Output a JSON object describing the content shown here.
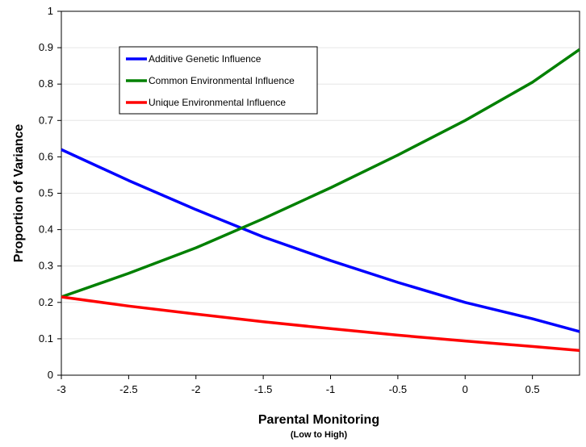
{
  "chart_data": {
    "type": "line",
    "xlabel": "Parental Monitoring",
    "xlabel_sub": "(Low to High)",
    "ylabel": "Proportion of Variance",
    "xlim": [
      -3,
      0.85
    ],
    "ylim": [
      0,
      1
    ],
    "x_ticks": [
      "-3",
      "-2.5",
      "-2",
      "-1.5",
      "-1",
      "-0.5",
      "0",
      "0.5"
    ],
    "y_ticks": [
      "0",
      "0.1",
      "0.2",
      "0.3",
      "0.4",
      "0.5",
      "0.6",
      "0.7",
      "0.8",
      "0.9",
      "1"
    ],
    "grid": "horizontal",
    "legend_position": "top-left",
    "x": [
      -3,
      -2.5,
      -2,
      -1.5,
      -1,
      -0.5,
      0,
      0.5,
      0.85
    ],
    "series": [
      {
        "name": "Additive Genetic Influence",
        "color": "#0000ff",
        "values": [
          0.62,
          0.535,
          0.455,
          0.38,
          0.315,
          0.255,
          0.2,
          0.155,
          0.12
        ]
      },
      {
        "name": "Common Environmental Influence",
        "color": "#008000",
        "values": [
          0.215,
          0.28,
          0.35,
          0.43,
          0.515,
          0.605,
          0.7,
          0.805,
          0.895
        ]
      },
      {
        "name": "Unique Environmental Influence",
        "color": "#ff0000",
        "values": [
          0.215,
          0.19,
          0.168,
          0.147,
          0.128,
          0.11,
          0.094,
          0.079,
          0.068
        ]
      }
    ]
  }
}
